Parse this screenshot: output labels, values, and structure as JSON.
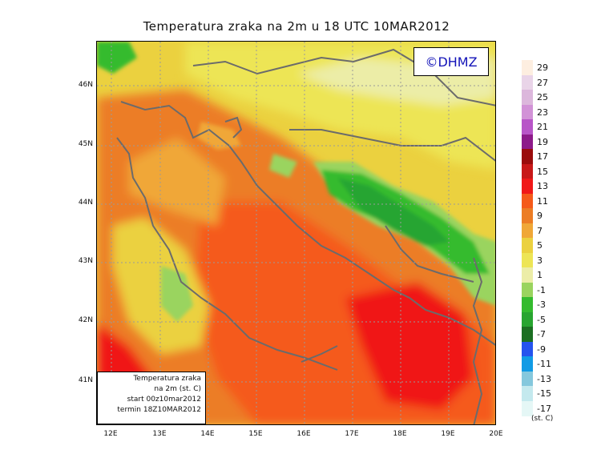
{
  "title": "Temperatura zraka na 2m u 18 UTC 10MAR2012",
  "logo": "©DHMZ",
  "info_box": {
    "line1": "Temperatura zraka",
    "line2": "na 2m (st. C)",
    "line3": "start 00z10mar2012",
    "line4": "termin 18Z10MAR2012"
  },
  "lat_labels": [
    "46N",
    "45N",
    "44N",
    "43N",
    "42N",
    "41N"
  ],
  "lon_labels": [
    "12E",
    "13E",
    "14E",
    "15E",
    "16E",
    "17E",
    "18E",
    "19E",
    "20E"
  ],
  "legend": {
    "unit": "(st. C)",
    "labels": [
      "29",
      "27",
      "25",
      "23",
      "21",
      "19",
      "17",
      "15",
      "13",
      "11",
      "9",
      "7",
      "5",
      "3",
      "1",
      "-1",
      "-3",
      "-5",
      "-7",
      "-9",
      "-11",
      "-13",
      "-15",
      "-17"
    ],
    "colors": [
      "#fdeee0",
      "#e9d4e8",
      "#dcb7dc",
      "#d292d7",
      "#b855c8",
      "#8d1a8a",
      "#9a0c0c",
      "#c81818",
      "#f01818",
      "#f55a1a",
      "#ec7d25",
      "#f0a737",
      "#ebd13f",
      "#ede555",
      "#eceda7",
      "#9ad45e",
      "#34bb2e",
      "#28a530",
      "#1c6f22",
      "#2553ee",
      "#119be5",
      "#85c8dd",
      "#c4e9ee",
      "#e5f7f6"
    ]
  }
}
